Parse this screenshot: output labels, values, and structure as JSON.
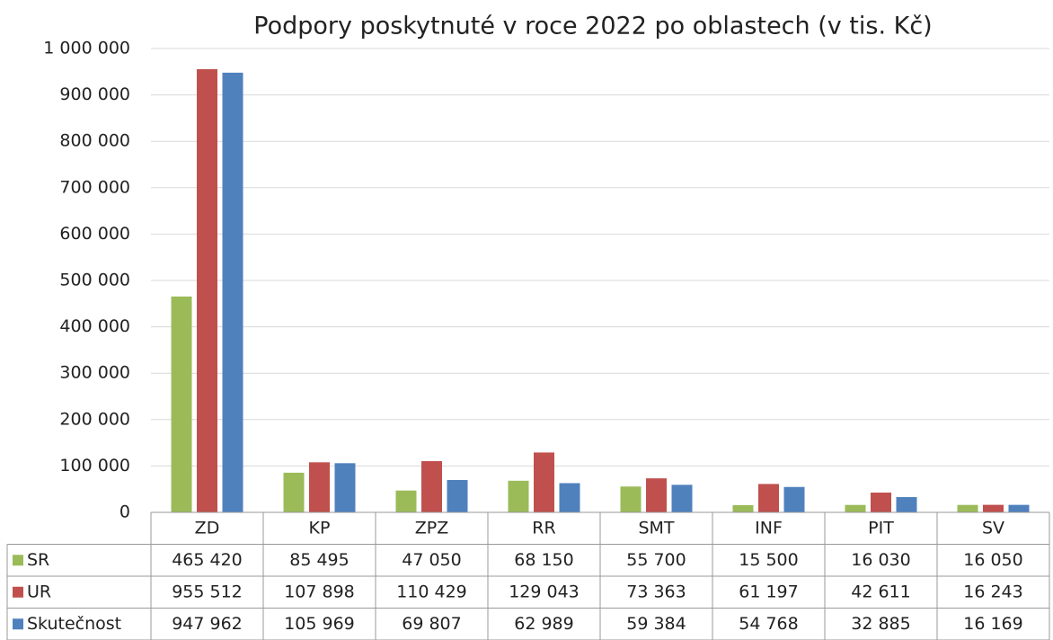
{
  "chart_data": {
    "type": "bar",
    "title": "Podpory poskytnuté v roce 2022 po oblastech (v tis. Kč)",
    "categories": [
      "ZD",
      "KP",
      "ZPZ",
      "RR",
      "SMT",
      "INF",
      "PIT",
      "SV"
    ],
    "series": [
      {
        "name": "SR",
        "color": "#9bbb59",
        "values": [
          465420,
          85495,
          47050,
          68150,
          55700,
          15500,
          16030,
          16050
        ],
        "value_labels": [
          "465 420",
          "85 495",
          "47 050",
          "68 150",
          "55 700",
          "15 500",
          "16 030",
          "16 050"
        ]
      },
      {
        "name": "UR",
        "color": "#c0504d",
        "values": [
          955512,
          107898,
          110429,
          129043,
          73363,
          61197,
          42611,
          16243
        ],
        "value_labels": [
          "955 512",
          "107 898",
          "110 429",
          "129 043",
          "73 363",
          "61 197",
          "42 611",
          "16 243"
        ]
      },
      {
        "name": "Skutečnost",
        "color": "#4f81bd",
        "values": [
          947962,
          105969,
          69807,
          62989,
          59384,
          54768,
          32885,
          16169
        ],
        "value_labels": [
          "947 962",
          "105 969",
          "69 807",
          "62 989",
          "59 384",
          "54 768",
          "32 885",
          "16 169"
        ]
      }
    ],
    "ylim": [
      0,
      1000000
    ],
    "yticks": [
      0,
      {
        "value": 100000,
        "label": "100 000"
      },
      {
        "value": 200000,
        "label": "200 000"
      },
      {
        "value": 300000,
        "label": "300 000"
      },
      {
        "value": 400000,
        "label": "400 000"
      },
      {
        "value": 500000,
        "label": "500 000"
      },
      {
        "value": 600000,
        "label": "600 000"
      },
      {
        "value": 700000,
        "label": "700 000"
      },
      {
        "value": 800000,
        "label": "800 000"
      },
      {
        "value": 900000,
        "label": "900 000"
      },
      {
        "value": 1000000,
        "label": "1 000 000"
      }
    ],
    "grid": true
  }
}
